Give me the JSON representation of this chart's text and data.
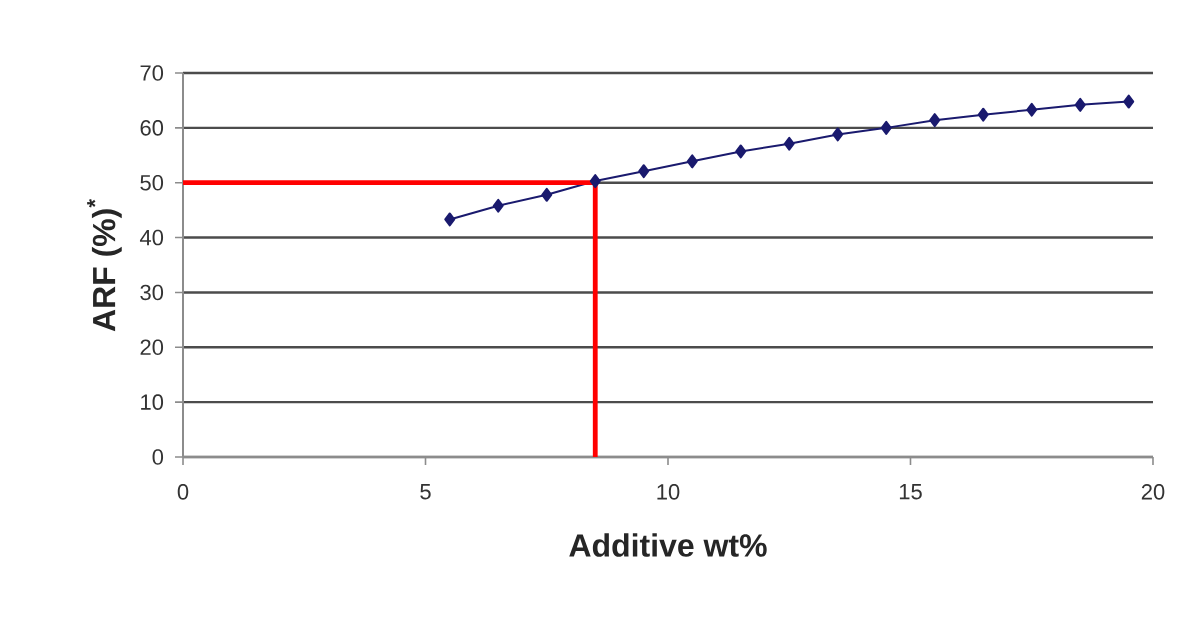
{
  "chart_data": {
    "type": "line",
    "xlabel": "Additive wt%",
    "ylabel": "ARF (%)$^{*}$",
    "xlim": [
      0,
      20
    ],
    "ylim": [
      0,
      70
    ],
    "xticks": [
      0,
      5,
      10,
      15,
      20
    ],
    "yticks": [
      0,
      10,
      20,
      30,
      40,
      50,
      60,
      70
    ],
    "grid": "y",
    "series": [
      {
        "color": "#1a1a6e",
        "marker": "diamond",
        "x": [
          5.5,
          6.5,
          7.5,
          8.5,
          9.5,
          10.5,
          11.5,
          12.5,
          13.5,
          14.5,
          15.5,
          16.5,
          17.5,
          18.5,
          19.5
        ],
        "values": [
          43.3,
          45.8,
          47.8,
          50.3,
          52.1,
          53.9,
          55.7,
          57.1,
          58.8,
          60,
          61.4,
          62.4,
          63.3,
          64.2,
          64.8
        ]
      },
      {
        "color": "#ff0000",
        "marker": "none",
        "x": [
          0,
          8.5,
          8.5
        ],
        "values": [
          50,
          50,
          0
        ]
      }
    ]
  }
}
